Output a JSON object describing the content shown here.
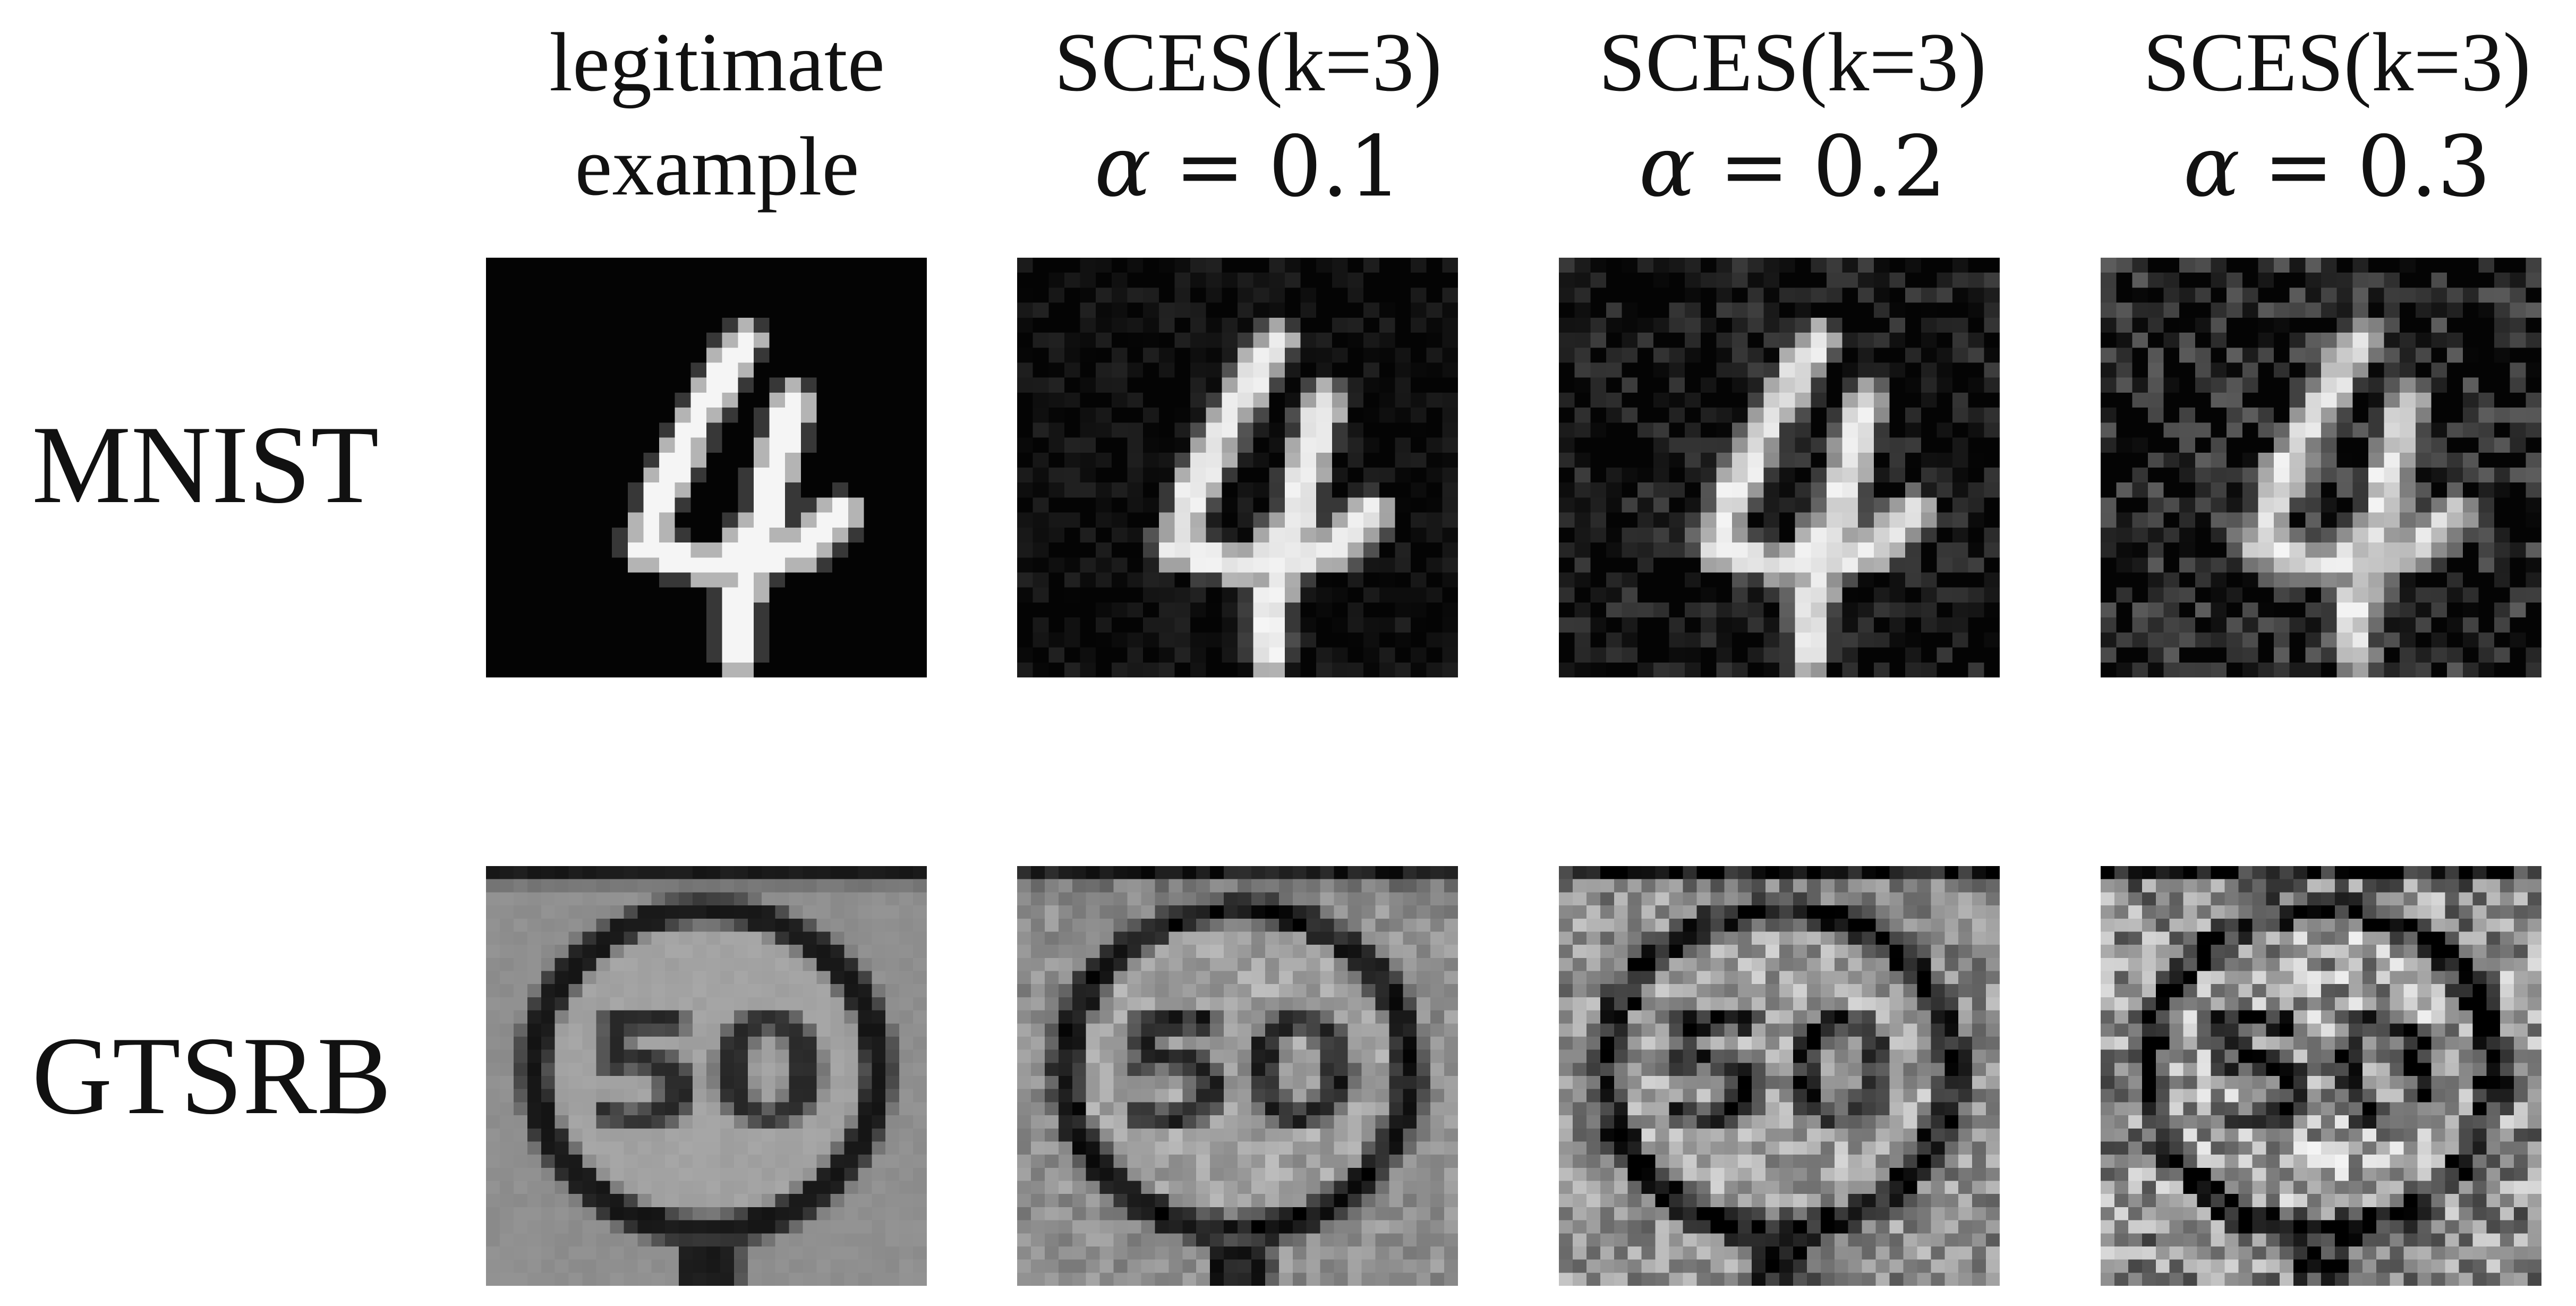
{
  "columns": [
    {
      "line1": "legitimate",
      "line2": "example",
      "alpha": null
    },
    {
      "line1": "SCES(k=3)",
      "alpha_symbol": "α",
      "equals": "=",
      "alpha": "0.1"
    },
    {
      "line1": "SCES(k=3)",
      "alpha_symbol": "α",
      "equals": "=",
      "alpha": "0.2"
    },
    {
      "line1": "SCES(k=3)",
      "alpha_symbol": "α",
      "equals": "=",
      "alpha": "0.3"
    }
  ],
  "rows": [
    {
      "label": "MNIST",
      "image_content": "handwritten-digit-4",
      "noise_levels": [
        0,
        0.1,
        0.2,
        0.3
      ]
    },
    {
      "label": "GTSRB",
      "image_content": "speed-limit-50-sign",
      "noise_levels": [
        0,
        0.1,
        0.2,
        0.3
      ]
    }
  ]
}
